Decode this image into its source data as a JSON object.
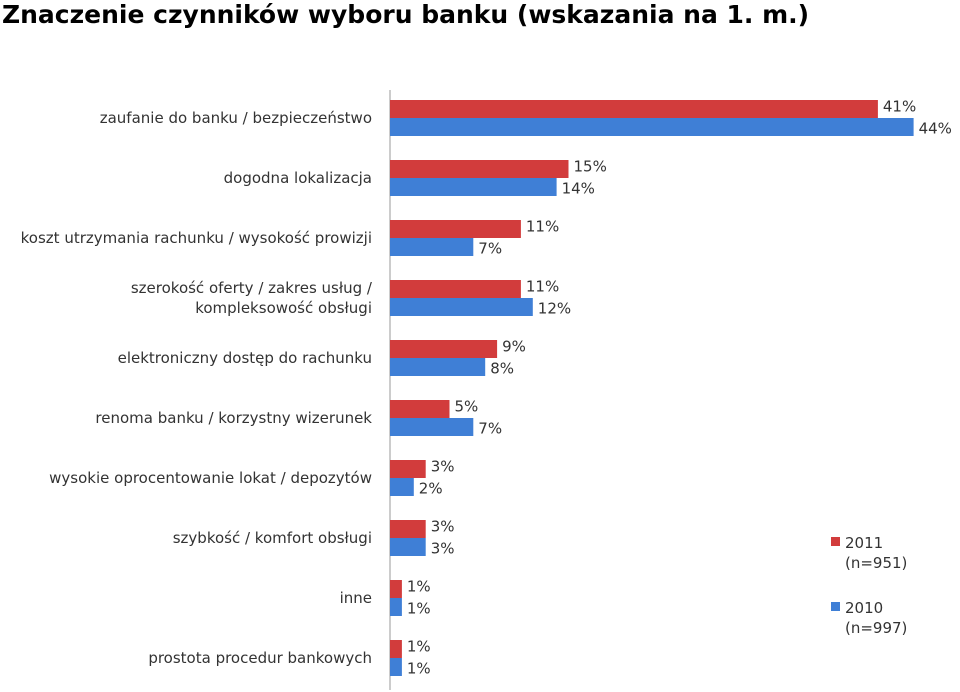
{
  "chart_data": {
    "type": "bar",
    "orientation": "horizontal",
    "title": "Znaczenie czynników wyboru banku (wskazania na 1. m.)",
    "categories": [
      "zaufanie do banku / bezpieczeństwo",
      "dogodna lokalizacja",
      "koszt utrzymania rachunku / wysokość prowizji",
      "szerokość oferty / zakres usług /\nkompleksowość obsługi",
      "elektroniczny dostęp do rachunku",
      "renoma banku / korzystny wizerunek",
      "wysokie oprocentowanie lokat / depozytów",
      "szybkość / komfort obsługi",
      "inne",
      "prostota procedur bankowych"
    ],
    "series": [
      {
        "name": "2011\n(n=951)",
        "color": "#d23c3c",
        "values": [
          41,
          15,
          11,
          11,
          9,
          5,
          3,
          3,
          1,
          1
        ],
        "value_labels": [
          "41%",
          "15%",
          "11%",
          "11%",
          "9%",
          "5%",
          "3%",
          "3%",
          "1%",
          "1%"
        ]
      },
      {
        "name": "2010\n(n=997)",
        "color": "#3f7fd6",
        "values": [
          44,
          14,
          7,
          12,
          8,
          7,
          2,
          3,
          1,
          1
        ],
        "value_labels": [
          "44%",
          "14%",
          "7%",
          "12%",
          "8%",
          "7%",
          "2%",
          "3%",
          "1%",
          "1%"
        ]
      }
    ],
    "legend": "right"
  }
}
